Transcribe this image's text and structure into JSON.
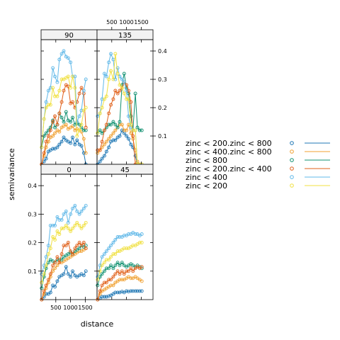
{
  "chart_data": {
    "type": "line",
    "layout": "lattice 2x2 panels, one per direction, overlaid cross-variogram series",
    "xlabel": "distance",
    "ylabel": "semivariance",
    "xlim": [
      0,
      1900
    ],
    "ylim": [
      0,
      0.44
    ],
    "x_ticks": [
      500,
      1000,
      1500
    ],
    "x_tick_labels": [
      "500",
      "1000",
      "1500"
    ],
    "y_ticks": [
      0.1,
      0.2,
      0.3,
      0.4
    ],
    "y_tick_labels": [
      "0.1",
      "0.2",
      "0.3",
      "0.4"
    ],
    "x": [
      20,
      100,
      170,
      250,
      320,
      400,
      470,
      550,
      620,
      700,
      770,
      850,
      920,
      1000,
      1070,
      1150,
      1220,
      1300,
      1370,
      1450,
      1520
    ],
    "legend": {
      "position": "right",
      "entries": [
        {
          "label": "zinc < 200.zinc < 800",
          "color": "#0080ff"
        },
        {
          "label": "zinc < 400.zinc < 800",
          "color": "#ff00ff"
        },
        {
          "label": "zinc < 800",
          "color": "#00a000"
        },
        {
          "label": "zinc < 200.zinc < 400",
          "color": "#ff0000"
        },
        {
          "label": "zinc < 400",
          "color": "#00c8ff"
        },
        {
          "label": "zinc < 200",
          "color": "#ffd700"
        }
      ]
    },
    "series_colors": [
      "#1f77b4",
      "#f0a030",
      "#109070",
      "#e0601a",
      "#60b8e8",
      "#f0e040"
    ],
    "panels": [
      {
        "strip": "90",
        "series": [
          {
            "name": "zinc < 200.zinc < 800",
            "values": [
              0.0,
              0.01,
              0.02,
              0.045,
              0.05,
              0.055,
              0.055,
              0.06,
              0.07,
              0.08,
              0.095,
              0.085,
              0.08,
              0.075,
              0.095,
              0.07,
              0.085,
              0.07,
              0.065,
              0.04,
              0.0
            ]
          },
          {
            "name": "zinc < 400.zinc < 800",
            "values": [
              0.0,
              0.03,
              0.06,
              0.08,
              0.095,
              0.1,
              0.11,
              0.12,
              0.115,
              0.13,
              0.135,
              0.14,
              0.125,
              0.13,
              0.135,
              0.12,
              0.125,
              0.12,
              0.115,
              0.09,
              0.04
            ]
          },
          {
            "name": "zinc < 800",
            "values": [
              0.06,
              0.1,
              0.11,
              0.12,
              0.13,
              0.155,
              0.13,
              0.14,
              0.18,
              0.165,
              0.15,
              0.185,
              0.155,
              0.15,
              0.165,
              0.14,
              0.145,
              0.14,
              0.13,
              0.12,
              0.12
            ]
          },
          {
            "name": "zinc < 200.zinc < 400",
            "values": [
              0.0,
              0.04,
              0.08,
              0.1,
              0.12,
              0.15,
              0.17,
              0.14,
              0.18,
              0.22,
              0.26,
              0.28,
              0.275,
              0.215,
              0.22,
              0.2,
              0.22,
              0.25,
              0.27,
              0.25,
              0.13
            ]
          },
          {
            "name": "zinc < 400",
            "values": [
              0.06,
              0.16,
              0.22,
              0.26,
              0.27,
              0.34,
              0.31,
              0.29,
              0.37,
              0.39,
              0.4,
              0.38,
              0.375,
              0.36,
              0.31,
              0.31,
              0.15,
              0.17,
              0.19,
              0.26,
              0.3
            ]
          },
          {
            "name": "zinc < 200",
            "values": [
              0.06,
              0.16,
              0.2,
              0.21,
              0.21,
              0.27,
              0.24,
              0.24,
              0.26,
              0.3,
              0.3,
              0.305,
              0.31,
              0.27,
              0.31,
              0.27,
              0.1,
              0.12,
              0.14,
              0.19,
              0.2
            ]
          }
        ]
      },
      {
        "strip": "135",
        "series": [
          {
            "name": "zinc < 200.zinc < 800",
            "values": [
              0.0,
              0.01,
              0.02,
              0.03,
              0.045,
              0.06,
              0.08,
              0.085,
              0.085,
              0.095,
              0.1,
              0.12,
              0.11,
              0.1,
              0.09,
              0.07,
              0.06,
              0.03,
              0.0,
              0.0,
              0.0
            ]
          },
          {
            "name": "zinc < 400.zinc < 800",
            "values": [
              0.04,
              0.05,
              0.06,
              0.07,
              0.08,
              0.09,
              0.1,
              0.11,
              0.12,
              0.13,
              0.14,
              0.14,
              0.12,
              0.12,
              0.14,
              0.11,
              0.09,
              0.05,
              0.01,
              0.0,
              0.0
            ]
          },
          {
            "name": "zinc < 800",
            "values": [
              0.11,
              0.12,
              0.11,
              0.12,
              0.13,
              0.14,
              0.14,
              0.15,
              0.14,
              0.13,
              0.15,
              0.28,
              0.32,
              0.27,
              0.25,
              0.17,
              0.12,
              0.25,
              0.13,
              0.12,
              0.12
            ]
          },
          {
            "name": "zinc < 200.zinc < 400",
            "values": [
              0.05,
              0.05,
              0.08,
              0.12,
              0.14,
              0.18,
              0.21,
              0.23,
              0.26,
              0.25,
              0.26,
              0.27,
              0.29,
              0.28,
              0.26,
              0.22,
              0.1,
              0.0,
              0.0,
              0.0,
              0.0
            ]
          },
          {
            "name": "zinc < 400",
            "values": [
              0.17,
              0.18,
              0.23,
              0.32,
              0.31,
              0.36,
              0.39,
              0.37,
              0.3,
              0.34,
              0.31,
              0.3,
              0.29,
              0.26,
              0.17,
              0.13,
              0.12,
              0.12,
              0.0,
              0.0,
              0.0
            ]
          },
          {
            "name": "zinc < 200",
            "values": [
              0.11,
              0.18,
              0.2,
              0.23,
              0.24,
              0.3,
              0.33,
              0.3,
              0.39,
              0.32,
              0.28,
              0.27,
              0.25,
              0.23,
              0.23,
              0.14,
              0.12,
              0.12,
              0.0,
              0.0,
              0.0
            ]
          }
        ]
      },
      {
        "strip": "0",
        "series": [
          {
            "name": "zinc < 200.zinc < 800",
            "values": [
              0.0,
              0.01,
              0.02,
              0.02,
              0.025,
              0.05,
              0.045,
              0.065,
              0.08,
              0.085,
              0.09,
              0.115,
              0.09,
              0.08,
              0.1,
              0.085,
              0.08,
              0.085,
              0.09,
              0.085,
              0.1
            ]
          },
          {
            "name": "zinc < 400.zinc < 800",
            "values": [
              0.0,
              0.02,
              0.04,
              0.06,
              0.08,
              0.1,
              0.11,
              0.12,
              0.13,
              0.13,
              0.135,
              0.14,
              0.145,
              0.15,
              0.155,
              0.16,
              0.165,
              0.17,
              0.17,
              0.175,
              0.18
            ]
          },
          {
            "name": "zinc < 800",
            "values": [
              0.04,
              0.08,
              0.11,
              0.13,
              0.14,
              0.135,
              0.13,
              0.14,
              0.14,
              0.14,
              0.15,
              0.155,
              0.16,
              0.165,
              0.16,
              0.17,
              0.175,
              0.18,
              0.19,
              0.185,
              0.19
            ]
          },
          {
            "name": "zinc < 200.zinc < 400",
            "values": [
              0.0,
              0.03,
              0.05,
              0.07,
              0.09,
              0.12,
              0.13,
              0.15,
              0.13,
              0.16,
              0.19,
              0.19,
              0.2,
              0.17,
              0.16,
              0.18,
              0.19,
              0.2,
              0.19,
              0.2,
              0.18
            ]
          },
          {
            "name": "zinc < 400",
            "values": [
              0.09,
              0.12,
              0.15,
              0.19,
              0.26,
              0.26,
              0.26,
              0.29,
              0.28,
              0.28,
              0.3,
              0.31,
              0.27,
              0.3,
              0.32,
              0.33,
              0.31,
              0.3,
              0.31,
              0.32,
              0.33
            ]
          },
          {
            "name": "zinc < 200",
            "values": [
              0.06,
              0.09,
              0.12,
              0.16,
              0.18,
              0.22,
              0.21,
              0.24,
              0.23,
              0.25,
              0.25,
              0.26,
              0.25,
              0.24,
              0.25,
              0.26,
              0.27,
              0.26,
              0.25,
              0.26,
              0.27
            ]
          }
        ]
      },
      {
        "strip": "45",
        "series": [
          {
            "name": "zinc < 200.zinc < 800",
            "values": [
              0.0,
              0.005,
              0.01,
              0.01,
              0.01,
              0.012,
              0.015,
              0.02,
              0.025,
              0.025,
              0.025,
              0.028,
              0.025,
              0.03,
              0.028,
              0.03,
              0.03,
              0.03,
              0.03,
              0.03,
              0.03
            ]
          },
          {
            "name": "zinc < 400.zinc < 800",
            "values": [
              0.0,
              0.02,
              0.03,
              0.035,
              0.04,
              0.045,
              0.05,
              0.05,
              0.06,
              0.065,
              0.07,
              0.07,
              0.07,
              0.075,
              0.08,
              0.075,
              0.075,
              0.08,
              0.075,
              0.07,
              0.065
            ]
          },
          {
            "name": "zinc < 800",
            "values": [
              0.05,
              0.08,
              0.09,
              0.1,
              0.11,
              0.11,
              0.12,
              0.11,
              0.12,
              0.13,
              0.12,
              0.13,
              0.12,
              0.115,
              0.12,
              0.125,
              0.12,
              0.115,
              0.12,
              0.115,
              0.11
            ]
          },
          {
            "name": "zinc < 200.zinc < 400",
            "values": [
              0.0,
              0.03,
              0.05,
              0.06,
              0.06,
              0.07,
              0.07,
              0.08,
              0.09,
              0.1,
              0.09,
              0.1,
              0.09,
              0.1,
              0.1,
              0.11,
              0.1,
              0.11,
              0.115,
              0.11,
              0.115
            ]
          },
          {
            "name": "zinc < 400",
            "values": [
              0.08,
              0.12,
              0.15,
              0.16,
              0.17,
              0.18,
              0.19,
              0.2,
              0.21,
              0.22,
              0.22,
              0.22,
              0.225,
              0.225,
              0.23,
              0.23,
              0.235,
              0.23,
              0.23,
              0.225,
              0.23
            ]
          },
          {
            "name": "zinc < 200",
            "values": [
              0.07,
              0.1,
              0.12,
              0.13,
              0.14,
              0.14,
              0.15,
              0.16,
              0.16,
              0.17,
              0.17,
              0.175,
              0.18,
              0.18,
              0.18,
              0.185,
              0.19,
              0.19,
              0.195,
              0.2,
              0.2
            ]
          }
        ]
      }
    ]
  }
}
